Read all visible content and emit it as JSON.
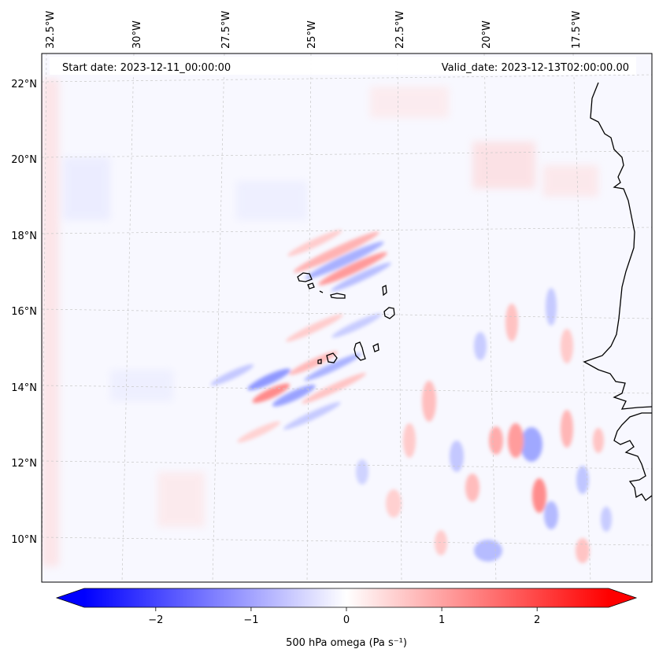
{
  "map": {
    "header": {
      "start_label": "Start date: 2023-12-11_00:00:00",
      "valid_label": "Valid_date: 2023-12-13T02:00:00.00"
    },
    "lon_ticks": [
      "32.5°W",
      "30°W",
      "27.5°W",
      "25°W",
      "22.5°W",
      "20°W",
      "17.5°W"
    ],
    "lat_ticks": [
      "22°N",
      "20°N",
      "18°N",
      "16°N",
      "14°N",
      "12°N",
      "10°N"
    ],
    "colorbar": {
      "min": -2.75,
      "max": 2.75,
      "ticks": [
        "−2",
        "−1",
        "0",
        "1",
        "2"
      ],
      "tick_values": [
        -2,
        -1,
        0,
        1,
        2
      ],
      "label": "500 hPa omega (Pa s⁻¹)",
      "color_low": "#0000ff",
      "color_mid": "#ffffff",
      "color_high": "#ff0000"
    },
    "colors": {
      "background": "#f8f8ff",
      "positive_tint": "#ff6060",
      "negative_tint": "#6070ff",
      "coastline": "#000000",
      "gridline": "#c8c8c8"
    }
  }
}
